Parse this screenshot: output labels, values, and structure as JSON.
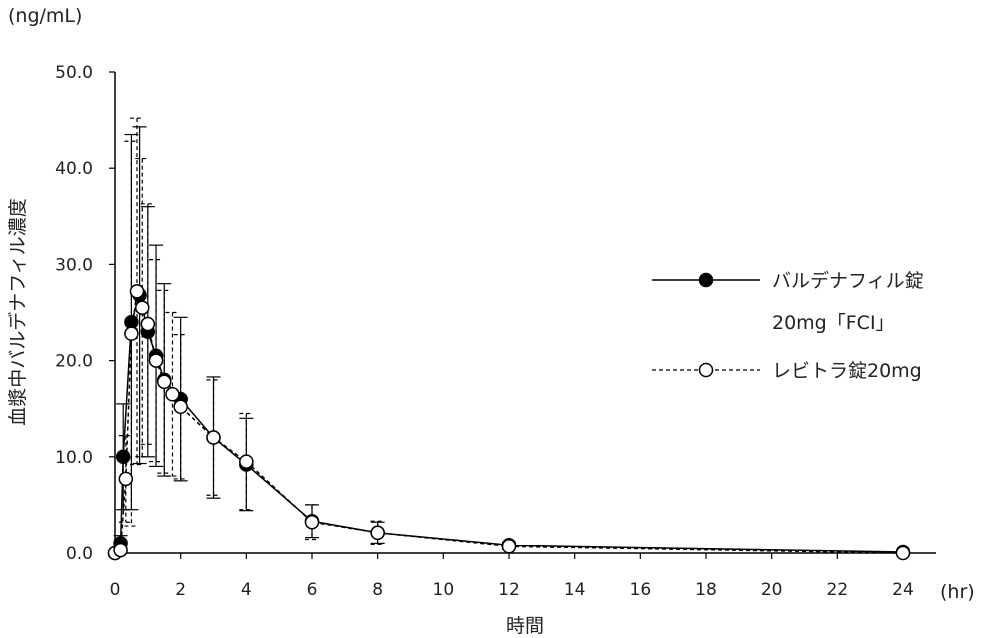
{
  "chart_data": {
    "type": "line",
    "title": "",
    "xlabel": "時間",
    "ylabel": "血漿中バルデナフィル濃度",
    "x_unit": "(hr)",
    "y_unit": "(ng/mL)",
    "xlim": [
      0,
      24
    ],
    "ylim": [
      0,
      50
    ],
    "x_ticks": [
      0,
      2,
      4,
      6,
      8,
      10,
      12,
      14,
      16,
      18,
      20,
      22,
      24
    ],
    "y_ticks": [
      0,
      10,
      20,
      30,
      40,
      50
    ],
    "x_tick_labels": [
      "0",
      "2",
      "4",
      "6",
      "8",
      "10",
      "12",
      "14",
      "16",
      "18",
      "20",
      "22",
      "24"
    ],
    "y_tick_labels": [
      "0.0",
      "10.0",
      "20.0",
      "30.0",
      "40.0",
      "50.0"
    ],
    "grid": false,
    "legend_position": "right",
    "series": [
      {
        "name": "バルデナフィル錠\n20mg「FCI」",
        "line_style": "solid",
        "marker": "filled-circle",
        "color": "#000000",
        "points": [
          {
            "x": 0,
            "y": 0.0,
            "err": 0
          },
          {
            "x": 0.17,
            "y": 1.0,
            "err": 0.8
          },
          {
            "x": 0.25,
            "y": 10.0,
            "err": 5.5
          },
          {
            "x": 0.5,
            "y": 24.0,
            "err": 19.5
          },
          {
            "x": 0.75,
            "y": 26.8,
            "err": 17.5
          },
          {
            "x": 1.0,
            "y": 23.0,
            "err": 13.0
          },
          {
            "x": 1.25,
            "y": 20.5,
            "err": 11.5
          },
          {
            "x": 1.5,
            "y": 18.0,
            "err": 10.0
          },
          {
            "x": 2.0,
            "y": 16.0,
            "err": 8.5
          },
          {
            "x": 3.0,
            "y": 12.0,
            "err": 6.3
          },
          {
            "x": 4.0,
            "y": 9.2,
            "err": 4.8
          },
          {
            "x": 6.0,
            "y": 3.3,
            "err": 1.7
          },
          {
            "x": 8.0,
            "y": 2.1,
            "err": 1.1
          },
          {
            "x": 12.0,
            "y": 0.8,
            "err": 0.3
          },
          {
            "x": 24.0,
            "y": 0.1,
            "err": 0.1
          }
        ]
      },
      {
        "name": "レビトラ錠20mg",
        "line_style": "dashed",
        "marker": "open-circle",
        "color": "#000000",
        "points": [
          {
            "x": 0,
            "y": 0.0,
            "err": 0
          },
          {
            "x": 0.17,
            "y": 0.3,
            "err": 0.3
          },
          {
            "x": 0.33,
            "y": 7.7,
            "err": 4.5
          },
          {
            "x": 0.5,
            "y": 22.8,
            "err": 20.0
          },
          {
            "x": 0.67,
            "y": 27.2,
            "err": 18.0
          },
          {
            "x": 0.83,
            "y": 25.5,
            "err": 15.5
          },
          {
            "x": 1.0,
            "y": 23.8,
            "err": 12.5
          },
          {
            "x": 1.25,
            "y": 20.0,
            "err": 10.5
          },
          {
            "x": 1.5,
            "y": 17.8,
            "err": 9.5
          },
          {
            "x": 1.75,
            "y": 16.5,
            "err": 8.5
          },
          {
            "x": 2.0,
            "y": 15.2,
            "err": 7.5
          },
          {
            "x": 3.0,
            "y": 12.0,
            "err": 6.0
          },
          {
            "x": 4.0,
            "y": 9.5,
            "err": 5.0
          },
          {
            "x": 6.0,
            "y": 3.2,
            "err": 1.8
          },
          {
            "x": 8.0,
            "y": 2.1,
            "err": 1.2
          },
          {
            "x": 12.0,
            "y": 0.7,
            "err": 0.3
          },
          {
            "x": 24.0,
            "y": 0.0,
            "err": 0.1
          }
        ]
      }
    ]
  }
}
